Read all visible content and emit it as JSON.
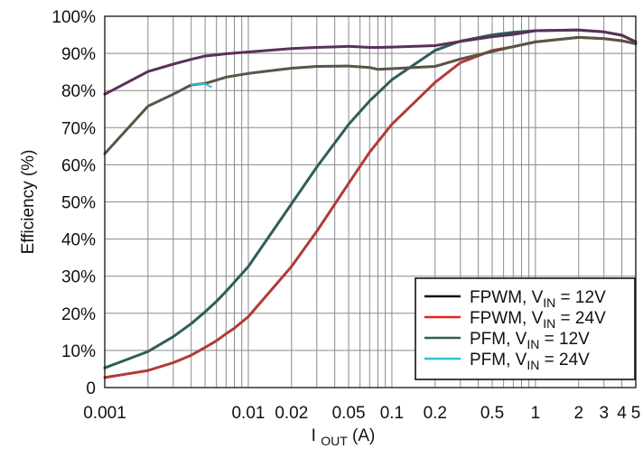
{
  "chart_data": {
    "type": "line",
    "title": "",
    "xlabel": "I",
    "xlabel_sub": "OUT",
    "xlabel_unit": " (A)",
    "ylabel": "Efficiency (%)",
    "xscale": "log",
    "xlim": [
      0.001,
      5
    ],
    "ylim": [
      0,
      100
    ],
    "grid": true,
    "legend_position": "bottom-right",
    "x_ticks": [
      {
        "value": 0.001,
        "label": "0.001"
      },
      {
        "value": 0.01,
        "label": "0.01"
      },
      {
        "value": 0.02,
        "label": "0.02"
      },
      {
        "value": 0.05,
        "label": "0.05"
      },
      {
        "value": 0.1,
        "label": "0.1"
      },
      {
        "value": 0.2,
        "label": "0.2"
      },
      {
        "value": 0.5,
        "label": "0.5"
      },
      {
        "value": 1,
        "label": "1"
      },
      {
        "value": 2,
        "label": "2"
      },
      {
        "value": 3,
        "label": "3"
      },
      {
        "value": 4,
        "label": "4"
      },
      {
        "value": 5,
        "label": "5"
      }
    ],
    "x_gridlines": [
      0.002,
      0.003,
      0.004,
      0.005,
      0.006,
      0.007,
      0.008,
      0.009,
      0.01,
      0.02,
      0.03,
      0.04,
      0.05,
      0.06,
      0.07,
      0.08,
      0.09,
      0.1,
      0.2,
      0.3,
      0.4,
      0.5,
      0.6,
      0.7,
      0.8,
      0.9,
      1,
      2,
      3,
      4
    ],
    "y_ticks": [
      {
        "value": 0,
        "label": "0"
      },
      {
        "value": 10,
        "label": "10%"
      },
      {
        "value": 20,
        "label": "20%"
      },
      {
        "value": 30,
        "label": "30%"
      },
      {
        "value": 40,
        "label": "40%"
      },
      {
        "value": 50,
        "label": "50%"
      },
      {
        "value": 60,
        "label": "60%"
      },
      {
        "value": 70,
        "label": "70%"
      },
      {
        "value": 80,
        "label": "80%"
      },
      {
        "value": 90,
        "label": "90%"
      },
      {
        "value": 100,
        "label": "100%"
      }
    ],
    "series": [
      {
        "name": "FPWM, V",
        "name_sub": "IN",
        "name_tail": " = 12V",
        "color": "#111111",
        "x": [
          0.001,
          0.002,
          0.003,
          0.004,
          0.005,
          0.006,
          0.007,
          0.01,
          0.02,
          0.03,
          0.05,
          0.07,
          0.08,
          0.1,
          0.2,
          0.3,
          0.5,
          0.7,
          1,
          2,
          3,
          4,
          5
        ],
        "y": [
          63,
          75.8,
          79,
          81.5,
          81.9,
          82.8,
          83.6,
          84.6,
          86,
          86.5,
          86.6,
          86.2,
          85.7,
          85.9,
          86.5,
          88.5,
          90.5,
          91.8,
          93.1,
          94.3,
          94,
          93.4,
          92.6
        ]
      },
      {
        "name": "FPWM, V",
        "name_sub": "IN",
        "name_tail": " = 24V",
        "color": "#e8231f",
        "x": [
          0.001,
          0.002,
          0.003,
          0.004,
          0.005,
          0.006,
          0.007,
          0.01,
          0.02,
          0.03,
          0.05,
          0.07,
          0.08,
          0.1,
          0.2,
          0.3,
          0.5,
          0.7,
          1,
          2,
          3,
          4,
          5
        ],
        "y": [
          79,
          85.1,
          87.1,
          88.4,
          89.3,
          89.6,
          89.9,
          90.4,
          91.3,
          91.6,
          91.9,
          91.6,
          91.6,
          91.7,
          92.1,
          93.2,
          94.5,
          95.1,
          96.1,
          96.3,
          95.8,
          94.9,
          93.1
        ]
      },
      {
        "name": "PFM, V",
        "name_sub": "IN",
        "name_tail": " = 12V",
        "color": "#2f5d5a",
        "x": [
          0.001,
          0.002,
          0.003,
          0.004,
          0.005,
          0.006,
          0.007,
          0.008,
          0.01,
          0.02,
          0.03,
          0.05,
          0.07,
          0.1,
          0.2,
          0.3,
          0.5,
          0.7,
          1,
          2,
          3,
          4,
          5
        ],
        "y": [
          5.3,
          9.7,
          13.7,
          17.2,
          20.4,
          23.2,
          25.9,
          28.4,
          32.6,
          49.5,
          59.4,
          70.9,
          77.2,
          82.9,
          90.8,
          93.3,
          95,
          95.7,
          96.1,
          96.3,
          95.8,
          94.9,
          93.1
        ]
      },
      {
        "name": "PFM, V",
        "name_sub": "IN",
        "name_tail": " = 24V",
        "color": "#2cc3d6",
        "x": [
          0.001,
          0.002,
          0.003,
          0.004,
          0.005,
          0.006,
          0.007,
          0.008,
          0.01,
          0.02,
          0.03,
          0.05,
          0.07,
          0.1,
          0.2,
          0.3,
          0.5,
          0.7,
          1,
          2,
          3,
          4,
          5
        ],
        "y": [
          2.7,
          4.6,
          6.7,
          8.7,
          10.8,
          12.6,
          14.5,
          16,
          19.1,
          32.6,
          42.1,
          55,
          63.4,
          70.9,
          82.2,
          87.5,
          90.8,
          91.8,
          93.1,
          94.3,
          94,
          93.4,
          92.6
        ]
      }
    ],
    "render_series": [
      {
        "color": "#b23a39",
        "width": 3,
        "x": [
          0.001,
          0.002,
          0.003,
          0.004,
          0.005,
          0.006,
          0.007,
          0.008,
          0.01,
          0.02,
          0.03,
          0.05,
          0.07,
          0.1,
          0.2,
          0.3,
          0.5,
          0.7,
          1,
          2,
          3,
          4,
          5
        ],
        "y": [
          2.7,
          4.6,
          6.7,
          8.7,
          10.8,
          12.6,
          14.5,
          16,
          19.1,
          32.6,
          42.1,
          55,
          63.4,
          70.9,
          82.2,
          87.5,
          90.8,
          91.8,
          93.1,
          94.3,
          94,
          93.4,
          92.6
        ]
      },
      {
        "color": "#2f5d5a",
        "width": 3,
        "x": [
          0.001,
          0.002,
          0.003,
          0.004,
          0.005,
          0.006,
          0.007,
          0.008,
          0.01,
          0.02,
          0.03,
          0.05,
          0.07,
          0.1,
          0.2,
          0.3,
          0.5,
          0.7,
          1,
          2,
          3,
          4,
          5
        ],
        "y": [
          5.3,
          9.7,
          13.7,
          17.2,
          20.4,
          23.2,
          25.9,
          28.4,
          32.6,
          49.5,
          59.4,
          70.9,
          77.2,
          82.9,
          90.8,
          93.3,
          95,
          95.7,
          96.1,
          96.3,
          95.8,
          94.9,
          93.1
        ]
      },
      {
        "color": "#5a5448",
        "width": 3,
        "x": [
          0.001,
          0.002,
          0.003,
          0.004,
          0.005,
          0.006,
          0.007,
          0.01,
          0.02,
          0.03,
          0.05,
          0.07,
          0.08,
          0.1,
          0.2,
          0.3,
          0.5,
          0.7,
          1,
          2,
          3,
          4,
          5
        ],
        "y": [
          63,
          75.8,
          79,
          81.5,
          81.9,
          82.8,
          83.6,
          84.6,
          86,
          86.5,
          86.6,
          86.2,
          85.7,
          85.9,
          86.5,
          88.5,
          90.5,
          91.8,
          93.1,
          94.3,
          94,
          93.4,
          92.6
        ]
      },
      {
        "color": "#5b2f5b",
        "width": 3,
        "x": [
          0.001,
          0.002,
          0.003,
          0.004,
          0.005,
          0.006,
          0.007,
          0.01,
          0.02,
          0.03,
          0.05,
          0.07,
          0.08,
          0.1,
          0.2,
          0.3,
          0.5,
          0.7,
          1,
          2,
          3,
          4,
          5
        ],
        "y": [
          79,
          85.1,
          87.1,
          88.4,
          89.3,
          89.6,
          89.9,
          90.4,
          91.3,
          91.6,
          91.9,
          91.6,
          91.6,
          91.7,
          92.1,
          93.2,
          94.5,
          95.1,
          96.1,
          96.3,
          95.8,
          94.9,
          93.1
        ]
      },
      {
        "color": "#2cc3d6",
        "width": 2,
        "x": [
          0.004,
          0.005,
          0.0055
        ],
        "y": [
          81.6,
          81.8,
          81.0
        ]
      }
    ]
  }
}
